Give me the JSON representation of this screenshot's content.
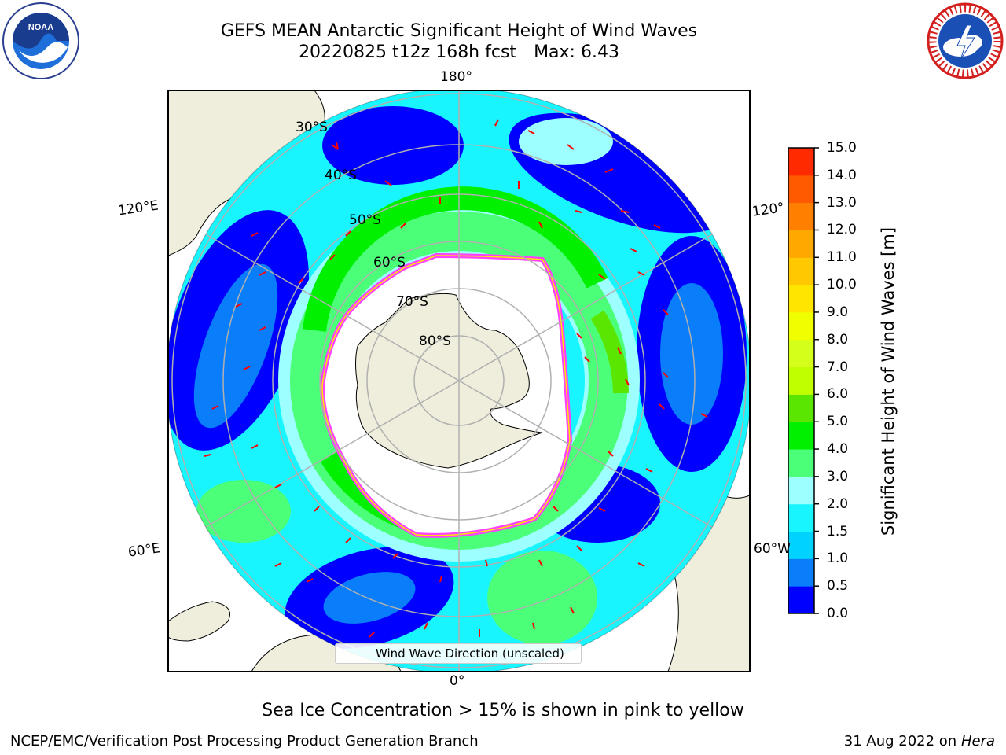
{
  "title": {
    "line1": "GEFS MEAN Antarctic Significant Height of Wind Waves",
    "line2_run": "20220825 t12z 168h fcst",
    "line2_max": "Max: 6.43"
  },
  "logos": {
    "left": "noaa-logo",
    "right": "nws-logo"
  },
  "map": {
    "projection": "south-polar-stereographic",
    "lon_labels": {
      "top": "180°",
      "bottom": "0°",
      "left_upper": "120°E",
      "left_lower": "60°E",
      "right_upper": "120°",
      "right_lower": "60°W"
    },
    "lat_labels": [
      "30°S",
      "40°S",
      "50°S",
      "60°S",
      "70°S",
      "80°S"
    ],
    "colors": {
      "land": "#efeddb",
      "ice_edge": "#ff40ff",
      "arrow": "#ff0000",
      "grid": "#b0b0b0"
    }
  },
  "colorbar": {
    "label": "Significant Height of Wind Waves [m]",
    "ticks": [
      "0.0",
      "0.5",
      "1.0",
      "1.5",
      "2.0",
      "3.0",
      "4.0",
      "5.0",
      "6.0",
      "7.0",
      "8.0",
      "9.0",
      "10.0",
      "11.0",
      "12.0",
      "13.0",
      "14.0",
      "15.0"
    ],
    "colors": [
      "#0000ff",
      "#0a7dfa",
      "#00d2ff",
      "#19f5ff",
      "#9dffff",
      "#4cff79",
      "#00f000",
      "#5ae600",
      "#c0ff00",
      "#d4ff1a",
      "#f0ff00",
      "#ffe600",
      "#ffc800",
      "#ffa800",
      "#ff8000",
      "#ff5a00",
      "#ff2a00"
    ]
  },
  "legend": {
    "label": "Wind Wave Direction (unscaled)"
  },
  "note": "Sea Ice Concentration > 15% is shown in pink to yellow",
  "footer": {
    "left": "NCEP/EMC/Verification Post Processing Product Generation Branch",
    "right_date": "31 Aug 2022 on",
    "right_machine": "Hera"
  }
}
